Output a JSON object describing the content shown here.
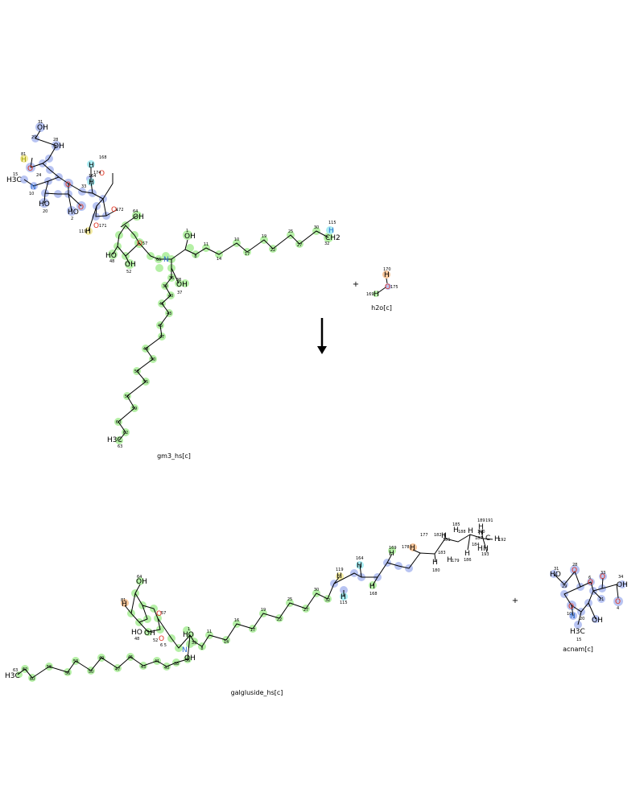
{
  "reactants": [
    {
      "id": "gm3",
      "caption": "gm3_hs[c]"
    },
    {
      "id": "water",
      "caption": "h2o[c]"
    }
  ],
  "products": [
    {
      "id": "galgluside",
      "caption": "galgluside_hs[c]"
    },
    {
      "id": "acnam",
      "caption": "acnam[c]"
    }
  ],
  "operators": {
    "plus": "+",
    "arrow_direction": "down"
  },
  "colors": {
    "blue_highlight": "#b8c4f2",
    "green_highlight": "#b5f0a6",
    "orange_highlight": "#f8c69a",
    "yellow_highlight": "#f2eaa0",
    "cyan_highlight": "#a8ecf2",
    "oxygen": "#e0301e",
    "nitrogen": "#2f6fd0",
    "hydrogen_label": "#a0a000"
  },
  "atom_labels": {
    "gm3": {
      "o31": "OH",
      "n31": "31",
      "o28": "OH",
      "n28": "28",
      "n29": "29",
      "h81": "H",
      "n81": "81",
      "o_ring": "O",
      "n24": "24",
      "h3c": "H3C",
      "n15": "15",
      "n_amide": "N",
      "n10": "10",
      "o6": "O",
      "n6": "6",
      "o20": "HO",
      "n20": "20",
      "o4": "O",
      "n4": "4",
      "o2": "HO",
      "n2": "2",
      "h168": "H",
      "n168": "168",
      "o174": "O",
      "n174": "174",
      "h164": "H",
      "n164": "164",
      "n33": "33",
      "o172": "O",
      "n172": "172",
      "o171": "O",
      "n171": "171",
      "h119": "H",
      "n119": "119",
      "o64": "OH",
      "n64": "64",
      "o57": "O",
      "n57": "57",
      "o48": "HO",
      "n48": "48",
      "o52": "OH",
      "n52": "52",
      "n_chain_amide": "N",
      "n65": "65",
      "o1": "OH",
      "n1": "1",
      "o37": "OH",
      "n37": "37",
      "h115": "H",
      "n115": "115",
      "ch2": "CH2",
      "n32": "32",
      "h3c_end": "H3C",
      "n63": "63",
      "chain_a": [
        "8",
        "11",
        "14",
        "10",
        "17",
        "19",
        "22",
        "25",
        "27",
        "30"
      ],
      "chain_b": [
        "36",
        "38",
        "39",
        "40",
        "41",
        "43",
        "45",
        "47",
        "49",
        "50",
        "53",
        "55",
        "56",
        "59",
        "60",
        "62"
      ]
    },
    "water": {
      "h170": "H",
      "n170": "170",
      "o175": "O",
      "n175": "175",
      "h169": "H",
      "n169": "169"
    },
    "galgluside": {
      "o64": "OH",
      "n64": "64",
      "h81": "H",
      "n81": "81",
      "o57": "O",
      "n57": "57",
      "o48": "HO",
      "n48": "48",
      "o52": "OH",
      "n52": "52",
      "o65": "O",
      "n65": "6 5",
      "o1": "HO",
      "n1": "1",
      "n_amide": "N",
      "o37": "OH",
      "h3c": "H3C",
      "n63": "63",
      "h119": "H",
      "n119": "119",
      "h164": "H",
      "n164": "164",
      "h169": "H",
      "n169": "169",
      "h178": "H",
      "n178": "178",
      "h115": "H",
      "n115": "115",
      "h168": "H",
      "n168": "168",
      "n177": "177",
      "n185": "185",
      "n189": "189",
      "n191": "191",
      "n182": "182",
      "n183": "183",
      "n186": "186",
      "n187": "187",
      "n192": "192",
      "n181": "181",
      "n179": "179",
      "n180": "180",
      "n184": "184",
      "n193": "193",
      "n190": "190",
      "n188": "188",
      "top_chain": [
        "8",
        "11",
        "14",
        "16",
        "17",
        "19",
        "22",
        "25",
        "27",
        "30",
        "32"
      ],
      "bottom_chain": [
        "62",
        "60",
        "58",
        "56",
        "53",
        "50",
        "49",
        "47",
        "45",
        "43",
        "41",
        "40",
        "38",
        "36",
        "39"
      ]
    },
    "acnam": {
      "o31": "HO",
      "n31": "31",
      "o28": "O",
      "n28": "28",
      "n29": "29",
      "o6": "O",
      "n6": "6",
      "o33": "O",
      "n33": "33",
      "oh_acid": "OH",
      "n34": "34",
      "o4": "O",
      "n4": "4",
      "o_h10": "O",
      "n10": "10",
      "n_amide": "N",
      "h3c": "H3C",
      "n15": "15",
      "n20": "20",
      "o20": "OH",
      "n21": "21"
    }
  }
}
